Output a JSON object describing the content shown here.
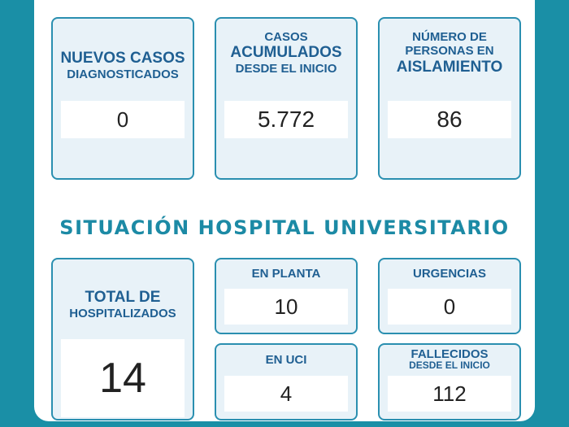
{
  "top_cards": {
    "new_cases": {
      "line1": "NUEVOS CASOS",
      "line2": "DIAGNOSTICADOS",
      "value": "0"
    },
    "cumulative": {
      "line1": "CASOS",
      "line2": "ACUMULADOS",
      "line3": "DESDE EL INICIO",
      "value": "5.772"
    },
    "isolation": {
      "line1": "NÚMERO DE",
      "line2": "PERSONAS EN",
      "line3": "AISLAMIENTO",
      "value": "86"
    }
  },
  "section_title": "SITUACIÓN HOSPITAL UNIVERSITARIO",
  "hospital": {
    "total": {
      "line1": "TOTAL DE",
      "line2": "HOSPITALIZADOS",
      "value": "14"
    },
    "ward": {
      "label": "EN PLANTA",
      "value": "10"
    },
    "emergency": {
      "label": "URGENCIAS",
      "value": "0"
    },
    "icu": {
      "label": "EN UCI",
      "value": "4"
    },
    "deceased": {
      "line1": "FALLECIDOS",
      "line2": "DESDE EL INICIO",
      "value": "112"
    }
  },
  "colors": {
    "background": "#1a8fa6",
    "card_border": "#2a8fb0",
    "label": "#1f5f92",
    "title": "#1c8aa5"
  }
}
